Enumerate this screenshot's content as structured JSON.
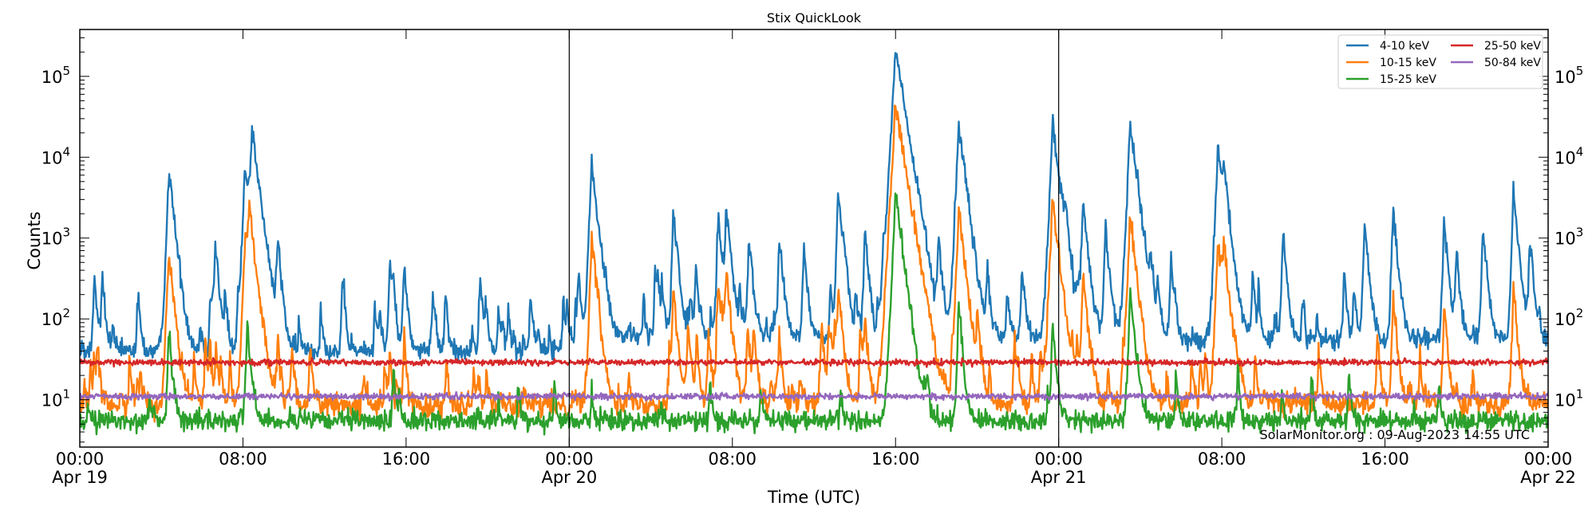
{
  "chart_data": {
    "type": "line",
    "title": "Stix QuickLook",
    "xlabel": "Time (UTC)",
    "ylabel": "Counts",
    "yscale": "log",
    "ylim": [
      2.6,
      380000
    ],
    "xlim": [
      "Apr 19 00:00",
      "Apr 22 00:00"
    ],
    "grid": false,
    "legend_position": "top-right",
    "x_ticks": [
      {
        "time": "Apr 19 00:00",
        "label": "00:00",
        "sublabel": "Apr 19"
      },
      {
        "time": "Apr 19 08:00",
        "label": "08:00",
        "sublabel": ""
      },
      {
        "time": "Apr 19 16:00",
        "label": "16:00",
        "sublabel": ""
      },
      {
        "time": "Apr 20 00:00",
        "label": "00:00",
        "sublabel": "Apr 20"
      },
      {
        "time": "Apr 20 08:00",
        "label": "08:00",
        "sublabel": ""
      },
      {
        "time": "Apr 20 16:00",
        "label": "16:00",
        "sublabel": ""
      },
      {
        "time": "Apr 21 00:00",
        "label": "00:00",
        "sublabel": "Apr 21"
      },
      {
        "time": "Apr 21 08:00",
        "label": "08:00",
        "sublabel": ""
      },
      {
        "time": "Apr 21 16:00",
        "label": "16:00",
        "sublabel": ""
      },
      {
        "time": "Apr 22 00:00",
        "label": "00:00",
        "sublabel": "Apr 22"
      }
    ],
    "y_ticks": [
      {
        "value": 10,
        "base": "10",
        "exp": "1"
      },
      {
        "value": 100,
        "base": "10",
        "exp": "2"
      },
      {
        "value": 1000,
        "base": "10",
        "exp": "3"
      },
      {
        "value": 10000,
        "base": "10",
        "exp": "4"
      },
      {
        "value": 100000,
        "base": "10",
        "exp": "5"
      }
    ],
    "day_boundaries": [
      "Apr 20 00:00",
      "Apr 21 00:00"
    ],
    "annotation": "SolarMonitor.org : 09-Aug-2023 14:55 UTC",
    "series": [
      {
        "name": "4-10 keV",
        "color": "#1f77b4",
        "baseline": [
          40,
          60,
          55
        ],
        "peaks": [
          [
            "Apr 19 00:42",
            370
          ],
          [
            "Apr 19 01:06",
            250
          ],
          [
            "Apr 19 01:36",
            90
          ],
          [
            "Apr 19 02:48",
            110
          ],
          [
            "Apr 19 04:22",
            7000
          ],
          [
            "Apr 19 05:54",
            100
          ],
          [
            "Apr 19 06:39",
            850
          ],
          [
            "Apr 19 07:45",
            190
          ],
          [
            "Apr 19 08:06",
            8000
          ],
          [
            "Apr 19 08:27",
            21000
          ],
          [
            "Apr 19 09:42",
            1000
          ],
          [
            "Apr 19 11:48",
            160
          ],
          [
            "Apr 19 15:12",
            550
          ],
          [
            "Apr 19 15:54",
            500
          ],
          [
            "Apr 19 17:18",
            250
          ],
          [
            "Apr 19 21:00",
            150
          ],
          [
            "Apr 19 22:06",
            230
          ],
          [
            "Apr 19 23:42",
            190
          ],
          [
            "Apr 20 01:06",
            9000
          ],
          [
            "Apr 20 05:06",
            2100
          ],
          [
            "Apr 20 06:12",
            450
          ],
          [
            "Apr 20 07:18",
            2000
          ],
          [
            "Apr 20 07:42",
            2600
          ],
          [
            "Apr 20 08:48",
            1000
          ],
          [
            "Apr 20 10:18",
            1100
          ],
          [
            "Apr 20 11:30",
            800
          ],
          [
            "Apr 20 13:12",
            4000
          ],
          [
            "Apr 20 14:30",
            1300
          ],
          [
            "Apr 20 15:24",
            800
          ],
          [
            "Apr 20 16:00",
            220000
          ],
          [
            "Apr 20 16:24",
            3000
          ],
          [
            "Apr 20 17:06",
            1100
          ],
          [
            "Apr 20 18:06",
            1100
          ],
          [
            "Apr 20 19:06",
            26000
          ],
          [
            "Apr 20 20:30",
            400
          ],
          [
            "Apr 20 22:12",
            500
          ],
          [
            "Apr 20 23:42",
            26000
          ],
          [
            "Apr 21 00:18",
            1500
          ],
          [
            "Apr 21 01:12",
            3100
          ],
          [
            "Apr 21 02:18",
            1500
          ],
          [
            "Apr 21 03:30",
            28000
          ],
          [
            "Apr 21 04:30",
            500
          ],
          [
            "Apr 21 05:30",
            600
          ],
          [
            "Apr 21 07:48",
            14000
          ],
          [
            "Apr 21 08:06",
            5500
          ],
          [
            "Apr 21 09:30",
            400
          ],
          [
            "Apr 21 11:00",
            1200
          ],
          [
            "Apr 21 14:00",
            400
          ],
          [
            "Apr 21 15:00",
            1600
          ],
          [
            "Apr 21 16:24",
            2200
          ],
          [
            "Apr 21 18:54",
            1700
          ],
          [
            "Apr 21 19:30",
            800
          ],
          [
            "Apr 21 20:48",
            1400
          ],
          [
            "Apr 21 22:18",
            3500
          ],
          [
            "Apr 21 23:06",
            950
          ]
        ]
      },
      {
        "name": "10-15 keV",
        "color": "#ff7f0e",
        "baseline": [
          8.5,
          9,
          9
        ],
        "peaks": [
          [
            "Apr 19 00:42",
            35
          ],
          [
            "Apr 19 04:22",
            700
          ],
          [
            "Apr 19 06:39",
            30
          ],
          [
            "Apr 19 08:06",
            1000
          ],
          [
            "Apr 19 08:18",
            2300
          ],
          [
            "Apr 19 09:42",
            60
          ],
          [
            "Apr 19 15:12",
            40
          ],
          [
            "Apr 19 15:54",
            60
          ],
          [
            "Apr 20 01:06",
            1000
          ],
          [
            "Apr 20 05:06",
            250
          ],
          [
            "Apr 20 07:18",
            300
          ],
          [
            "Apr 20 07:42",
            400
          ],
          [
            "Apr 20 10:18",
            60
          ],
          [
            "Apr 20 13:12",
            250
          ],
          [
            "Apr 20 14:30",
            100
          ],
          [
            "Apr 20 16:00",
            45000
          ],
          [
            "Apr 20 19:06",
            2300
          ],
          [
            "Apr 20 23:42",
            3000
          ],
          [
            "Apr 21 01:12",
            400
          ],
          [
            "Apr 21 03:30",
            2000
          ],
          [
            "Apr 21 07:48",
            1000
          ],
          [
            "Apr 21 08:06",
            700
          ],
          [
            "Apr 21 16:24",
            200
          ],
          [
            "Apr 21 18:54",
            150
          ],
          [
            "Apr 21 22:18",
            250
          ]
        ]
      },
      {
        "name": "15-25 keV",
        "color": "#2ca02c",
        "baseline": [
          5.5,
          5.5,
          5.5
        ],
        "peaks": [
          [
            "Apr 19 04:22",
            80
          ],
          [
            "Apr 19 08:12",
            100
          ],
          [
            "Apr 20 01:06",
            15
          ],
          [
            "Apr 20 16:00",
            3500
          ],
          [
            "Apr 20 19:06",
            150
          ],
          [
            "Apr 20 23:42",
            90
          ],
          [
            "Apr 21 03:30",
            250
          ]
        ]
      },
      {
        "name": "25-50 keV",
        "color": "#d62728",
        "baseline": [
          29,
          29,
          29
        ],
        "peaks": []
      },
      {
        "name": "50-84 keV",
        "color": "#9467bd",
        "baseline": [
          11,
          11,
          11
        ],
        "peaks": []
      }
    ]
  }
}
